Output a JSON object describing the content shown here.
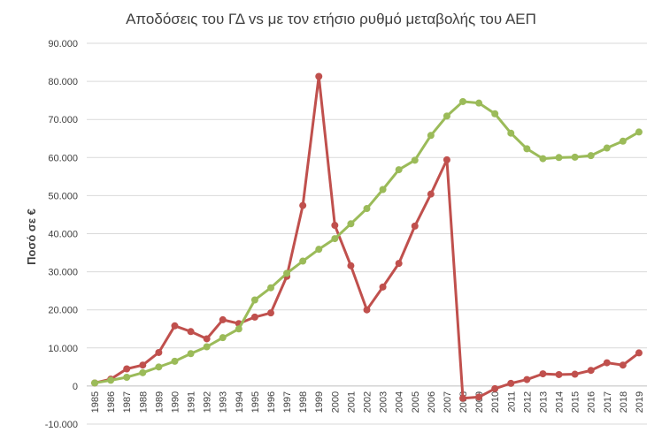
{
  "chart_data": {
    "type": "line",
    "title_line1": "",
    "title": "Αποδόσεις του ΓΔ vs με τον ετήσιο ρυθμό μεταβολής του ΑΕΠ",
    "xlabel": "",
    "ylabel": "Ποσό σε €",
    "ylim": [
      -10000,
      90000
    ],
    "y_ticks": [
      "-10.000",
      "0",
      "10.000",
      "20.000",
      "30.000",
      "40.000",
      "50.000",
      "60.000",
      "70.000",
      "80.000",
      "90.000"
    ],
    "grid": "horizontal",
    "categories": [
      "1985",
      "1986",
      "1987",
      "1988",
      "1989",
      "1990",
      "1991",
      "1992",
      "1993",
      "1994",
      "1995",
      "1996",
      "1997",
      "1998",
      "1999",
      "2000",
      "2001",
      "2002",
      "2003",
      "2004",
      "2005",
      "2006",
      "2007",
      "2008",
      "2009",
      "2010",
      "2011",
      "2012",
      "2013",
      "2014",
      "2015",
      "2016",
      "2017",
      "2018",
      "2019"
    ],
    "series": [
      {
        "color": "#c0504d",
        "values": [
          800,
          1800,
          4500,
          5500,
          8800,
          15800,
          14300,
          12400,
          17400,
          16400,
          18100,
          19200,
          28800,
          47400,
          81300,
          42200,
          31600,
          20000,
          26000,
          32200,
          42000,
          50400,
          59400,
          -3200,
          -2900,
          -700,
          700,
          1700,
          3200,
          3000,
          3100,
          4100,
          6100,
          5500,
          8700
        ]
      },
      {
        "color": "#9bbb59",
        "values": [
          800,
          1500,
          2300,
          3500,
          5000,
          6500,
          8500,
          10300,
          12700,
          15000,
          22600,
          25800,
          29600,
          32800,
          35900,
          38700,
          42600,
          46600,
          51600,
          56800,
          59300,
          65800,
          70900,
          74700,
          74300,
          71500,
          66400,
          62300,
          59700,
          60000,
          60100,
          60500,
          62500,
          64300,
          66700
        ]
      }
    ]
  }
}
